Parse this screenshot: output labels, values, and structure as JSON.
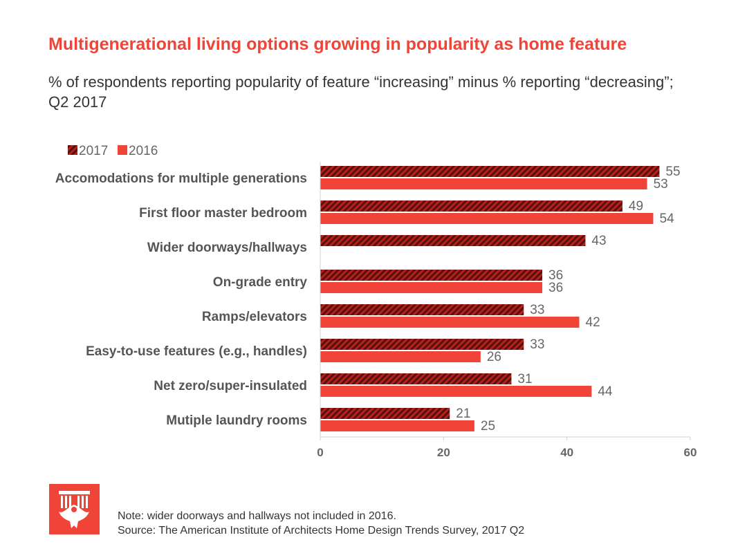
{
  "title": "Multigenerational living options growing in popularity as home feature",
  "subtitle": "% of respondents reporting popularity of feature “increasing” minus % reporting “decreasing”; Q2 2017",
  "note": "Note: wider doorways and hallways not included in 2016.",
  "source": "Source: The American Institute of Architects Home Design Trends Survey, 2017 Q2",
  "logo": "AIA eagle logo",
  "colors": {
    "series_2017": "#b3221c",
    "series_2017_hatch": "#5a0f0c",
    "series_2016": "#f04438",
    "logo_bg": "#f04438"
  },
  "chart_data": {
    "type": "bar",
    "orientation": "horizontal",
    "categories": [
      "Accomodations for multiple generations",
      "First floor master bedroom",
      "Wider doorways/hallways",
      "On-grade entry",
      "Ramps/elevators",
      "Easy-to-use features (e.g., handles)",
      "Net zero/super-insulated",
      "Mutiple laundry rooms"
    ],
    "series": [
      {
        "name": "2017",
        "pattern": "hatched",
        "values": [
          55,
          49,
          43,
          36,
          33,
          33,
          31,
          21
        ]
      },
      {
        "name": "2016",
        "pattern": "solid",
        "values": [
          53,
          54,
          null,
          36,
          42,
          26,
          44,
          25
        ]
      }
    ],
    "xlim": [
      0,
      60
    ],
    "xticks": [
      0,
      20,
      40,
      60
    ],
    "xlabel": "",
    "ylabel": "",
    "grid": false,
    "legend": "top-left"
  }
}
